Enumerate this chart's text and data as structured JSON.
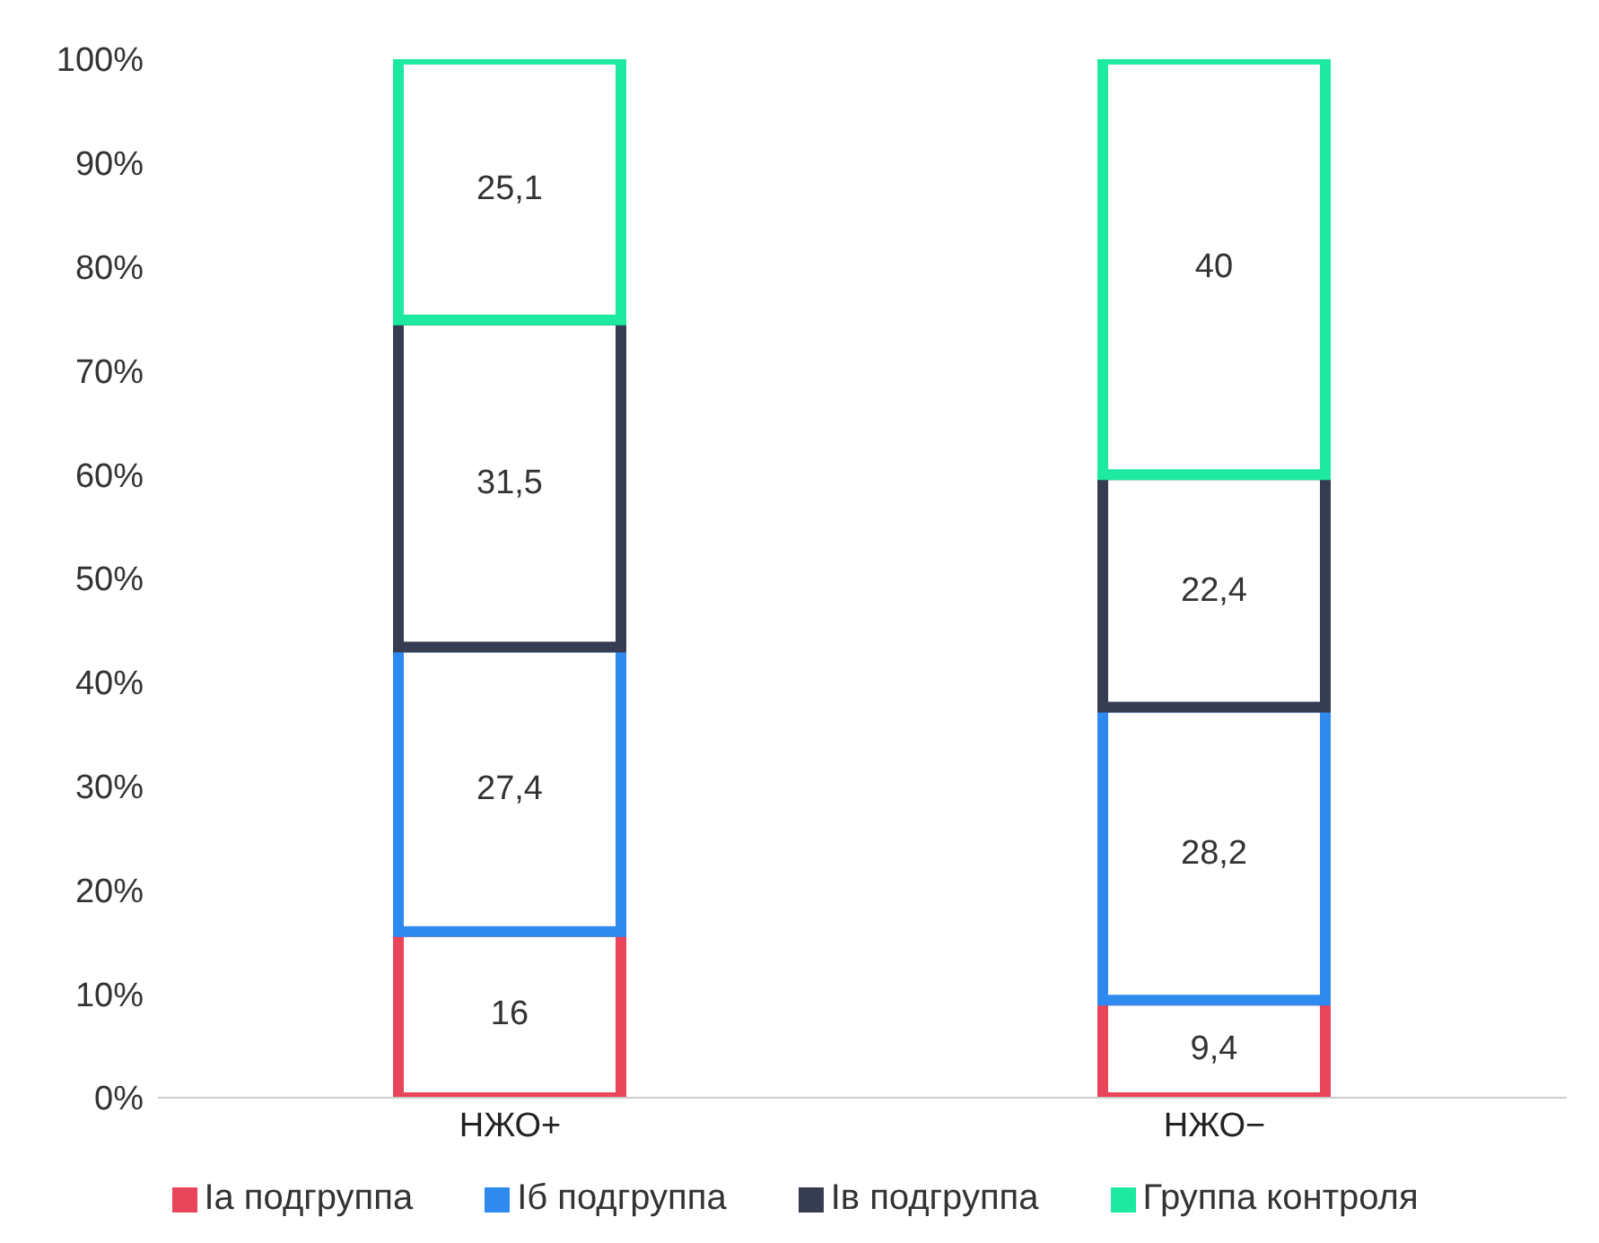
{
  "chart_data": {
    "type": "bar",
    "stacked": true,
    "categories": [
      "НЖО+",
      "НЖО−"
    ],
    "series": [
      {
        "name": "Ia подгруппа",
        "color": "#e8455a",
        "values": [
          16,
          9.4
        ],
        "value_labels": [
          "16",
          "9,4"
        ]
      },
      {
        "name": "Iб подгруппа",
        "color": "#2f8af0",
        "values": [
          27.4,
          28.2
        ],
        "value_labels": [
          "27,4",
          "28,2"
        ]
      },
      {
        "name": "Iв подгруппа",
        "color": "#363c52",
        "values": [
          31.5,
          22.4
        ],
        "value_labels": [
          "31,5",
          "22,4"
        ]
      },
      {
        "name": "Группа контроля",
        "color": "#1de9a0",
        "values": [
          25.1,
          40
        ],
        "value_labels": [
          "25,1",
          "40"
        ]
      }
    ],
    "ylim": [
      0,
      100
    ],
    "yticks": [
      {
        "value": 0,
        "label": "0%"
      },
      {
        "value": 10,
        "label": "10%"
      },
      {
        "value": 20,
        "label": "20%"
      },
      {
        "value": 30,
        "label": "30%"
      },
      {
        "value": 40,
        "label": "40%"
      },
      {
        "value": 50,
        "label": "50%"
      },
      {
        "value": 60,
        "label": "60%"
      },
      {
        "value": 70,
        "label": "70%"
      },
      {
        "value": 80,
        "label": "80%"
      },
      {
        "value": 90,
        "label": "90%"
      },
      {
        "value": 100,
        "label": "100%"
      }
    ],
    "legend": "bottom"
  }
}
